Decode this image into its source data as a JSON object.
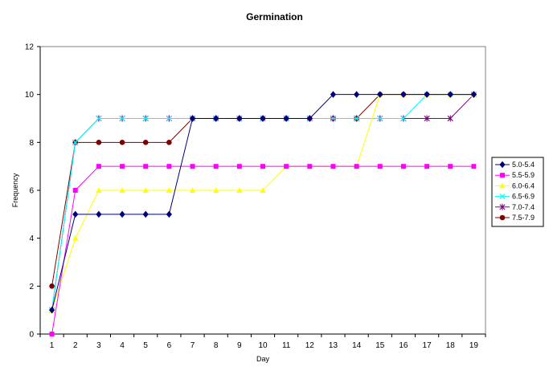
{
  "chart_data": {
    "type": "line",
    "title": "Germination",
    "xlabel": "Day",
    "ylabel": "Frequency",
    "x": [
      1,
      2,
      3,
      4,
      5,
      6,
      7,
      8,
      9,
      10,
      11,
      12,
      13,
      14,
      15,
      16,
      17,
      18,
      19
    ],
    "ylim": [
      0,
      12
    ],
    "yticks": [
      0,
      2,
      4,
      6,
      8,
      10,
      12
    ],
    "grid": false,
    "legend_position": "right",
    "series": [
      {
        "name": "5.0-5.4",
        "color": "#000080",
        "marker": "diamond",
        "values": [
          1,
          5,
          5,
          5,
          5,
          5,
          9,
          9,
          9,
          9,
          9,
          9,
          10,
          10,
          10,
          10,
          10,
          10,
          10
        ]
      },
      {
        "name": "5.5-5.9",
        "color": "#ff00ff",
        "marker": "square",
        "values": [
          0,
          6,
          7,
          7,
          7,
          7,
          7,
          7,
          7,
          7,
          7,
          7,
          7,
          7,
          7,
          7,
          7,
          7,
          7
        ]
      },
      {
        "name": "6.0-6.4",
        "color": "#ffff00",
        "marker": "triangle",
        "values": [
          1,
          4,
          6,
          6,
          6,
          6,
          6,
          6,
          6,
          6,
          7,
          7,
          7,
          7,
          10,
          10,
          10,
          10,
          10
        ]
      },
      {
        "name": "6.5-6.9",
        "color": "#00ffff",
        "marker": "x",
        "values": [
          1,
          8,
          9,
          9,
          9,
          9,
          9,
          9,
          9,
          9,
          9,
          9,
          9,
          9,
          9,
          9,
          10,
          10,
          10
        ]
      },
      {
        "name": "7.0-7.4",
        "color": "#800080",
        "marker": "star",
        "values": [
          1,
          8,
          9,
          9,
          9,
          9,
          9,
          9,
          9,
          9,
          9,
          9,
          9,
          9,
          9,
          9,
          9,
          9,
          10
        ]
      },
      {
        "name": "7.5-7.9",
        "color": "#800000",
        "marker": "circle",
        "values": [
          2,
          8,
          8,
          8,
          8,
          8,
          9,
          9,
          9,
          9,
          9,
          9,
          9,
          9,
          10,
          10,
          10,
          10,
          10
        ]
      }
    ]
  },
  "colors": {
    "background": "#ffffff",
    "axis": "#000000",
    "plot_border": "#808080"
  }
}
